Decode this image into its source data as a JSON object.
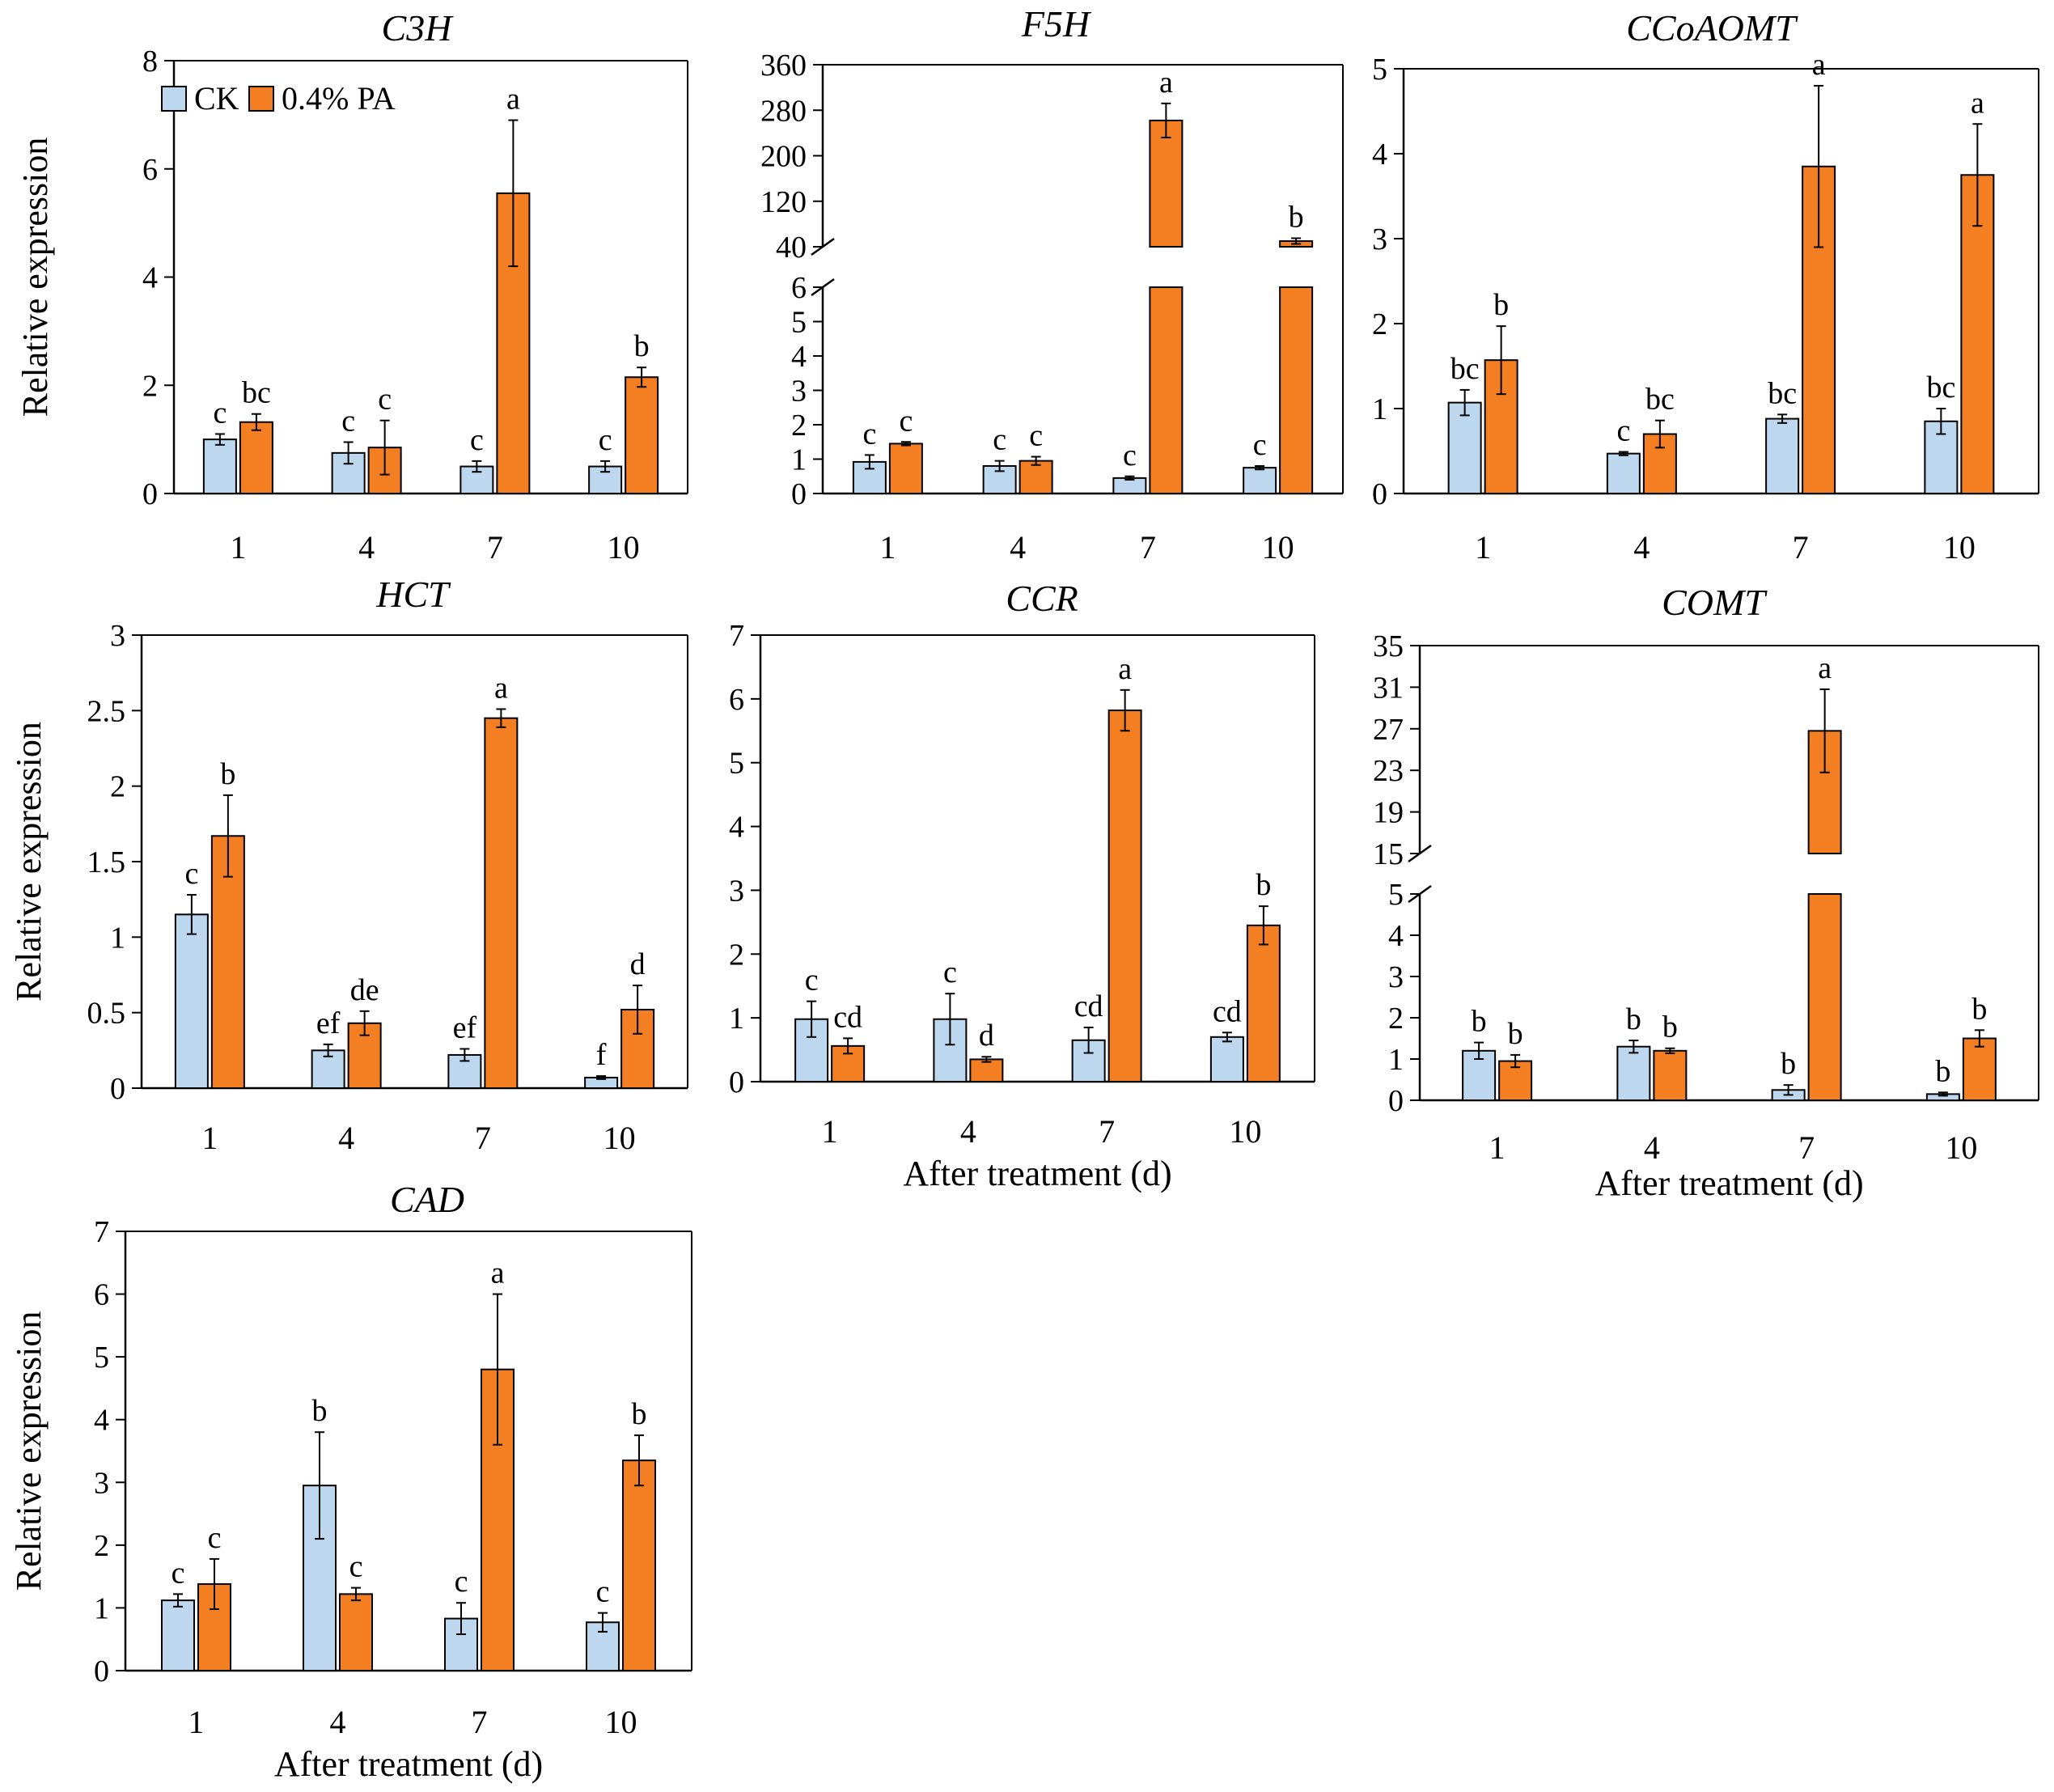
{
  "colors": {
    "ck": "#BDD7EE",
    "pa": "#F47E22",
    "edge": "#000000"
  },
  "legend": {
    "ck_label": "CK",
    "pa_label": "0.4% PA"
  },
  "chart_data": [
    {
      "id": "c3h",
      "type": "bar",
      "title": "C3H",
      "categories": [
        "1",
        "4",
        "7",
        "10"
      ],
      "ylabel": "Relative expression",
      "xlabel": "",
      "ylim": [
        0,
        8
      ],
      "yticks": [
        0,
        2,
        4,
        6,
        8
      ],
      "legend": true,
      "series": [
        {
          "name": "CK",
          "values": [
            1.0,
            0.75,
            0.5,
            0.5
          ],
          "errors": [
            0.1,
            0.2,
            0.1,
            0.1
          ],
          "labels": [
            "c",
            "c",
            "c",
            "c"
          ]
        },
        {
          "name": "0.4% PA",
          "values": [
            1.32,
            0.85,
            5.55,
            2.15
          ],
          "errors": [
            0.15,
            0.5,
            1.35,
            0.18
          ],
          "labels": [
            "bc",
            "c",
            "a",
            "b"
          ]
        }
      ]
    },
    {
      "id": "f5h",
      "type": "bar",
      "title": "F5H",
      "categories": [
        "1",
        "4",
        "7",
        "10"
      ],
      "ylabel": "",
      "xlabel": "",
      "legend": false,
      "broken_axis": {
        "lower": [
          0,
          6
        ],
        "upper": [
          40,
          360
        ],
        "lower_ticks": [
          0,
          1,
          2,
          3,
          4,
          5,
          6
        ],
        "upper_ticks": [
          40,
          120,
          200,
          280,
          360
        ]
      },
      "series": [
        {
          "name": "CK",
          "values": [
            0.92,
            0.8,
            0.45,
            0.75
          ],
          "errors": [
            0.2,
            0.15,
            0.05,
            0.05
          ],
          "labels": [
            "c",
            "c",
            "c",
            "c"
          ]
        },
        {
          "name": "0.4% PA",
          "values": [
            1.45,
            0.95,
            262,
            50
          ],
          "errors": [
            0.05,
            0.12,
            30,
            5
          ],
          "labels": [
            "c",
            "c",
            "a",
            "b"
          ]
        }
      ]
    },
    {
      "id": "ccoaomt",
      "type": "bar",
      "title": "CCoAOMT",
      "categories": [
        "1",
        "4",
        "7",
        "10"
      ],
      "ylabel": "",
      "xlabel": "",
      "legend": false,
      "ylim": [
        0,
        5
      ],
      "yticks": [
        0,
        1,
        2,
        3,
        4,
        5
      ],
      "series": [
        {
          "name": "CK",
          "values": [
            1.07,
            0.47,
            0.88,
            0.85
          ],
          "errors": [
            0.15,
            0.02,
            0.05,
            0.15
          ],
          "labels": [
            "bc",
            "c",
            "bc",
            "bc"
          ]
        },
        {
          "name": "0.4% PA",
          "values": [
            1.57,
            0.7,
            3.85,
            3.75
          ],
          "errors": [
            0.4,
            0.16,
            0.95,
            0.6
          ],
          "labels": [
            "b",
            "bc",
            "a",
            "a"
          ]
        }
      ]
    },
    {
      "id": "hct",
      "type": "bar",
      "title": "HCT",
      "categories": [
        "1",
        "4",
        "7",
        "10"
      ],
      "ylabel": "Relative expression",
      "xlabel": "",
      "legend": false,
      "ylim": [
        0,
        3
      ],
      "yticks": [
        0,
        0.5,
        1,
        1.5,
        2,
        2.5,
        3
      ],
      "series": [
        {
          "name": "CK",
          "values": [
            1.15,
            0.25,
            0.22,
            0.07
          ],
          "errors": [
            0.13,
            0.04,
            0.04,
            0.01
          ],
          "labels": [
            "c",
            "ef",
            "ef",
            "f"
          ]
        },
        {
          "name": "0.4% PA",
          "values": [
            1.67,
            0.43,
            2.45,
            0.52
          ],
          "errors": [
            0.27,
            0.08,
            0.06,
            0.16
          ],
          "labels": [
            "b",
            "de",
            "a",
            "d"
          ]
        }
      ]
    },
    {
      "id": "ccr",
      "type": "bar",
      "title": "CCR",
      "categories": [
        "1",
        "4",
        "7",
        "10"
      ],
      "ylabel": "",
      "xlabel": "After treatment (d)",
      "legend": false,
      "ylim": [
        0,
        7
      ],
      "yticks": [
        0,
        1,
        2,
        3,
        4,
        5,
        6,
        7
      ],
      "series": [
        {
          "name": "CK",
          "values": [
            0.98,
            0.98,
            0.65,
            0.7
          ],
          "errors": [
            0.28,
            0.4,
            0.2,
            0.07
          ],
          "labels": [
            "c",
            "c",
            "cd",
            "cd"
          ]
        },
        {
          "name": "0.4% PA",
          "values": [
            0.56,
            0.35,
            5.82,
            2.45
          ],
          "errors": [
            0.12,
            0.04,
            0.32,
            0.3
          ],
          "labels": [
            "cd",
            "d",
            "a",
            "b"
          ]
        }
      ]
    },
    {
      "id": "comt",
      "type": "bar",
      "title": "COMT",
      "categories": [
        "1",
        "4",
        "7",
        "10"
      ],
      "ylabel": "",
      "xlabel": "After treatment (d)",
      "legend": false,
      "broken_axis": {
        "lower": [
          0,
          5
        ],
        "upper": [
          15,
          35
        ],
        "lower_ticks": [
          0,
          1,
          2,
          3,
          4,
          5
        ],
        "upper_ticks": [
          15,
          19,
          23,
          27,
          31,
          35
        ]
      },
      "series": [
        {
          "name": "CK",
          "values": [
            1.2,
            1.3,
            0.25,
            0.15
          ],
          "errors": [
            0.2,
            0.15,
            0.12,
            0.04
          ],
          "labels": [
            "b",
            "b",
            "b",
            "b"
          ]
        },
        {
          "name": "0.4% PA",
          "values": [
            0.95,
            1.2,
            26.8,
            1.5
          ],
          "errors": [
            0.15,
            0.06,
            4.0,
            0.2
          ],
          "labels": [
            "b",
            "b",
            "a",
            "b"
          ]
        }
      ]
    },
    {
      "id": "cad",
      "type": "bar",
      "title": "CAD",
      "categories": [
        "1",
        "4",
        "7",
        "10"
      ],
      "ylabel": "Relative expression",
      "xlabel": "After treatment (d)",
      "legend": false,
      "ylim": [
        0,
        7
      ],
      "yticks": [
        0,
        1,
        2,
        3,
        4,
        5,
        6,
        7
      ],
      "series": [
        {
          "name": "CK",
          "values": [
            1.12,
            2.95,
            0.83,
            0.77
          ],
          "errors": [
            0.1,
            0.85,
            0.25,
            0.15
          ],
          "labels": [
            "c",
            "b",
            "c",
            "c"
          ]
        },
        {
          "name": "0.4% PA",
          "values": [
            1.38,
            1.22,
            4.8,
            3.35
          ],
          "errors": [
            0.4,
            0.1,
            1.2,
            0.4
          ],
          "labels": [
            "c",
            "c",
            "a",
            "b"
          ]
        }
      ]
    }
  ]
}
